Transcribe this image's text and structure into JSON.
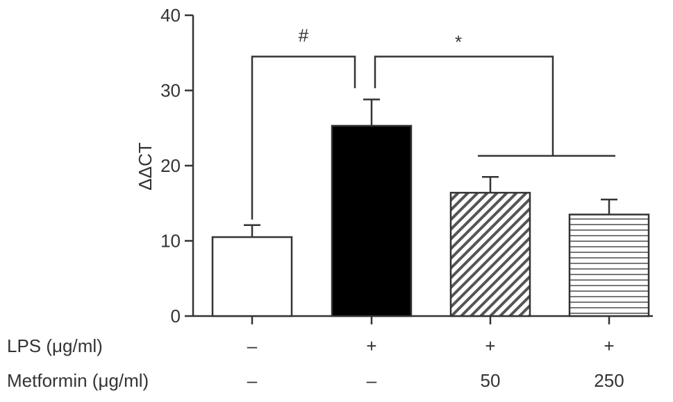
{
  "chart_data": {
    "type": "bar",
    "title": "",
    "ylabel": "ΔΔCT",
    "ylim": [
      0,
      40
    ],
    "yticks": [
      0,
      10,
      20,
      30,
      40
    ],
    "grid": false,
    "groups": [
      {
        "lps": "–",
        "metformin": "–",
        "value": 10.5,
        "error": 1.6,
        "fill": "white"
      },
      {
        "lps": "+",
        "metformin": "–",
        "value": 25.3,
        "error": 3.5,
        "fill": "black"
      },
      {
        "lps": "+",
        "metformin": "50",
        "value": 16.4,
        "error": 2.1,
        "fill": "diagonal-hatch"
      },
      {
        "lps": "+",
        "metformin": "250",
        "value": 13.5,
        "error": 2.0,
        "fill": "horizontal-hatch"
      }
    ],
    "row_labels": {
      "lps": "LPS (μg/ml)",
      "metformin": "Metformin (μg/ml)"
    },
    "significance": [
      {
        "symbol": "#"
      },
      {
        "symbol": "*"
      }
    ]
  }
}
